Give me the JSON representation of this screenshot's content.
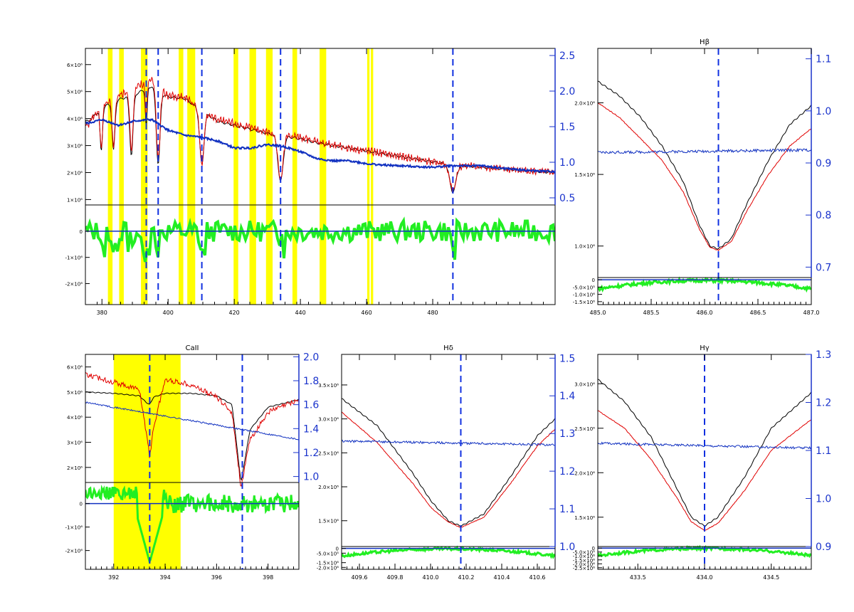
{
  "colors": {
    "observed": "#e00000",
    "model": "#000000",
    "ratio": "#1030c0",
    "residual": "#22ee22",
    "mask": "#ffff00",
    "line_marker": "#1030e0",
    "axis": "#000000",
    "right_axis": "#1a33cc"
  },
  "chart_data": [
    {
      "type": "line",
      "panel": "full-spectrum",
      "title": "",
      "x_ticks": [
        "380",
        "400",
        "420",
        "440",
        "460",
        "480"
      ],
      "xlim": [
        375,
        517
      ],
      "y_ticks": [
        "1×10⁶",
        "2×10⁶",
        "3×10⁶",
        "4×10⁶",
        "5×10⁶",
        "6×10⁶"
      ],
      "ylim": [
        0.8,
        6.6
      ],
      "y2_ticks": [
        "0.5",
        "1.0",
        "1.5",
        "2.0",
        "2.5"
      ],
      "y2lim": [
        0.4,
        2.6
      ],
      "resid_ticks": [
        "0",
        "-1×10⁶",
        "-2×10⁶"
      ],
      "resid_lim": [
        -2.8,
        1.0
      ],
      "mask_bands": [
        [
          381.8,
          383.2
        ],
        [
          385.2,
          386.6
        ],
        [
          391.8,
          393.8
        ],
        [
          403.2,
          404.6
        ],
        [
          405.8,
          408.2
        ],
        [
          419.8,
          421.2
        ],
        [
          424.6,
          426.6
        ],
        [
          429.6,
          431.6
        ],
        [
          437.6,
          439.0
        ],
        [
          445.8,
          447.8
        ],
        [
          460.2,
          460.9
        ],
        [
          461.3,
          462.0
        ]
      ],
      "line_markers": [
        393.4,
        397.0,
        410.2,
        434.0,
        486.1
      ],
      "absorption_lines": [
        [
          379.8,
          0.5,
          1.6
        ],
        [
          383.5,
          0.6,
          1.8
        ],
        [
          388.9,
          0.7,
          2.2
        ],
        [
          393.4,
          0.4,
          1.4
        ],
        [
          397.0,
          0.8,
          2.7
        ],
        [
          410.2,
          0.9,
          2.0
        ],
        [
          434.0,
          1.1,
          1.7
        ],
        [
          486.1,
          1.3,
          1.0
        ]
      ],
      "series": [
        {
          "name": "",
          "role": "model",
          "x": [
            376,
            380,
            385,
            390,
            395,
            400,
            405,
            410,
            415,
            420,
            425,
            430,
            435,
            440,
            445,
            450,
            455,
            460,
            465,
            470,
            475,
            480,
            485,
            490,
            495,
            500,
            505,
            510,
            517
          ],
          "values": [
            3.9,
            4.4,
            4.7,
            4.9,
            5.2,
            4.8,
            4.75,
            4.3,
            3.9,
            3.75,
            3.6,
            3.45,
            3.35,
            3.25,
            3.1,
            3.0,
            2.9,
            2.8,
            2.7,
            2.6,
            2.5,
            2.4,
            2.3,
            2.25,
            2.2,
            2.15,
            2.1,
            2.05,
            2.0
          ]
        },
        {
          "name": "",
          "role": "observed",
          "x": [
            376,
            380,
            385,
            390,
            395,
            400,
            405,
            410,
            415,
            420,
            425,
            430,
            435,
            440,
            445,
            450,
            455,
            460,
            465,
            470,
            475,
            480,
            485,
            490,
            495,
            500,
            505,
            510,
            517
          ],
          "values": [
            3.8,
            4.5,
            4.85,
            5.1,
            5.5,
            4.85,
            4.8,
            4.3,
            3.95,
            3.8,
            3.65,
            3.5,
            3.4,
            3.3,
            3.15,
            3.0,
            2.9,
            2.8,
            2.7,
            2.6,
            2.5,
            2.4,
            2.3,
            2.25,
            2.2,
            2.15,
            2.1,
            2.05,
            2.0
          ]
        },
        {
          "name": "",
          "role": "ratio",
          "axis": "right",
          "x": [
            376,
            380,
            385,
            390,
            395,
            400,
            405,
            410,
            415,
            420,
            425,
            430,
            435,
            440,
            445,
            450,
            455,
            460,
            465,
            470,
            475,
            480,
            485,
            490,
            495,
            500,
            505,
            510,
            517
          ],
          "values": [
            1.55,
            1.6,
            1.52,
            1.58,
            1.6,
            1.45,
            1.38,
            1.35,
            1.3,
            1.2,
            1.2,
            1.25,
            1.22,
            1.15,
            1.05,
            1.02,
            1.02,
            0.98,
            0.96,
            0.95,
            0.94,
            0.93,
            0.95,
            0.95,
            0.95,
            0.92,
            0.9,
            0.88,
            0.87
          ]
        }
      ]
    },
    {
      "type": "line",
      "panel": "H-beta",
      "title": "Hβ",
      "x_ticks": [
        "485.0",
        "485.5",
        "486.0",
        "486.5",
        "487.0"
      ],
      "xlim": [
        485.0,
        487.0
      ],
      "y_ticks": [
        "1.0×10⁶",
        "1.5×10⁶",
        "2.0×10⁶"
      ],
      "ylim": [
        0.78,
        2.38
      ],
      "y2_ticks": [
        "0.7",
        "0.8",
        "0.9",
        "1.0",
        "1.1"
      ],
      "y2lim": [
        0.68,
        1.12
      ],
      "resid_ticks": [
        "0",
        "-5.0×10⁵",
        "-1.0×10⁶",
        "-1.5×10⁶"
      ],
      "resid_lim": [
        -1.7,
        0.15
      ],
      "line_markers": [
        486.13
      ],
      "series": [
        {
          "name": "",
          "role": "model",
          "x": [
            485.0,
            485.2,
            485.4,
            485.6,
            485.8,
            485.95,
            486.05,
            486.13,
            486.25,
            486.4,
            486.6,
            486.8,
            487.0
          ],
          "values": [
            2.15,
            2.05,
            1.9,
            1.7,
            1.45,
            1.15,
            1.0,
            0.98,
            1.05,
            1.3,
            1.6,
            1.85,
            1.98
          ]
        },
        {
          "name": "",
          "role": "observed",
          "x": [
            485.0,
            485.2,
            485.4,
            485.6,
            485.8,
            485.95,
            486.05,
            486.13,
            486.25,
            486.4,
            486.6,
            486.8,
            487.0
          ],
          "values": [
            2.0,
            1.9,
            1.75,
            1.6,
            1.38,
            1.12,
            0.99,
            0.97,
            1.03,
            1.25,
            1.5,
            1.7,
            1.82
          ]
        },
        {
          "name": "",
          "role": "ratio",
          "axis": "right",
          "x": [
            485.0,
            487.0
          ],
          "values": [
            0.92,
            0.925
          ]
        }
      ]
    },
    {
      "type": "line",
      "panel": "CaII",
      "title": "CaII",
      "x_ticks": [
        "392",
        "394",
        "396",
        "398"
      ],
      "xlim": [
        390.9,
        399.2
      ],
      "y_ticks": [
        "2×10⁶",
        "3×10⁶",
        "4×10⁶",
        "5×10⁶",
        "6×10⁶"
      ],
      "ylim": [
        1.4,
        6.5
      ],
      "y2_ticks": [
        "1.0",
        "1.2",
        "1.4",
        "1.6",
        "1.8",
        "2.0"
      ],
      "y2lim": [
        0.95,
        2.02
      ],
      "resid_ticks": [
        "0",
        "-1×10⁶",
        "-2×10⁶"
      ],
      "resid_lim": [
        -2.8,
        0.9
      ],
      "mask_bands": [
        [
          392.0,
          394.6
        ]
      ],
      "line_markers": [
        393.4,
        397.0
      ],
      "series": [
        {
          "name": "",
          "role": "model",
          "x": [
            390.9,
            392.0,
            393.0,
            393.25,
            393.4,
            393.55,
            394.0,
            395.0,
            396.0,
            396.6,
            396.95,
            397.3,
            398.0,
            399.2
          ],
          "values": [
            5.0,
            4.95,
            4.85,
            4.6,
            4.5,
            4.8,
            4.95,
            4.95,
            4.85,
            4.5,
            1.4,
            3.5,
            4.4,
            4.7
          ]
        },
        {
          "name": "",
          "role": "observed",
          "x": [
            390.9,
            392.0,
            393.0,
            393.25,
            393.4,
            393.55,
            394.0,
            395.0,
            396.0,
            396.6,
            396.95,
            397.3,
            398.0,
            399.2
          ],
          "values": [
            5.7,
            5.4,
            5.1,
            3.5,
            2.4,
            3.6,
            5.5,
            5.3,
            4.8,
            4.2,
            1.2,
            3.1,
            4.2,
            4.7
          ]
        },
        {
          "name": "",
          "role": "ratio",
          "axis": "right",
          "x": [
            390.9,
            399.2
          ],
          "values": [
            1.62,
            1.31
          ]
        }
      ]
    },
    {
      "type": "line",
      "panel": "H-delta",
      "title": "Hδ",
      "x_ticks": [
        "409.6",
        "409.8",
        "410.0",
        "410.2",
        "410.4",
        "410.6"
      ],
      "xlim": [
        409.5,
        410.7
      ],
      "y_ticks": [
        "1.5×10⁶",
        "2.0×10⁶",
        "2.5×10⁶",
        "3.0×10⁶",
        "3.5×10⁶"
      ],
      "ylim": [
        1.12,
        3.95
      ],
      "y2_ticks": [
        "1.0",
        "1.1",
        "1.2",
        "1.3",
        "1.4",
        "1.5"
      ],
      "y2lim": [
        1.0,
        1.51
      ],
      "resid_ticks": [
        "0",
        "-5.0×10⁵",
        "-1.5×10⁶",
        "-2.0×10⁶"
      ],
      "resid_lim": [
        -2.2,
        0.2
      ],
      "line_markers": [
        410.17
      ],
      "series": [
        {
          "name": "",
          "role": "model",
          "x": [
            409.5,
            409.7,
            409.9,
            410.0,
            410.1,
            410.17,
            410.3,
            410.45,
            410.6,
            410.7
          ],
          "values": [
            3.3,
            2.9,
            2.2,
            1.8,
            1.5,
            1.42,
            1.6,
            2.15,
            2.75,
            3.0
          ]
        },
        {
          "name": "",
          "role": "observed",
          "x": [
            409.5,
            409.7,
            409.9,
            410.0,
            410.1,
            410.17,
            410.3,
            410.45,
            410.6,
            410.7
          ],
          "values": [
            3.1,
            2.65,
            2.05,
            1.7,
            1.48,
            1.4,
            1.55,
            2.05,
            2.6,
            2.85
          ]
        },
        {
          "name": "",
          "role": "ratio",
          "axis": "right",
          "x": [
            409.5,
            410.7
          ],
          "values": [
            1.28,
            1.27
          ]
        }
      ]
    },
    {
      "type": "line",
      "panel": "H-gamma",
      "title": "Hγ",
      "x_ticks": [
        "433.5",
        "434.0",
        "434.5"
      ],
      "xlim": [
        433.2,
        434.8
      ],
      "y_ticks": [
        "1.5×10⁶",
        "2.0×10⁶",
        "2.5×10⁶",
        "3.0×10⁶"
      ],
      "ylim": [
        1.17,
        3.33
      ],
      "y2_ticks": [
        "0.9",
        "1.0",
        "1.1",
        "1.2",
        "1.3"
      ],
      "y2lim": [
        0.9,
        1.3
      ],
      "resid_ticks": [
        "0",
        "-5.0×10⁵",
        "-1.0×10⁶",
        "-1.5×10⁶",
        "-2.0×10⁶",
        "-2.5×10⁶"
      ],
      "resid_lim": [
        -2.7,
        0.2
      ],
      "line_markers": [
        434.0
      ],
      "series": [
        {
          "name": "",
          "role": "model",
          "x": [
            433.2,
            433.4,
            433.6,
            433.8,
            433.9,
            434.0,
            434.1,
            434.3,
            434.5,
            434.8
          ],
          "values": [
            3.05,
            2.8,
            2.4,
            1.8,
            1.5,
            1.4,
            1.5,
            1.95,
            2.5,
            2.9
          ]
        },
        {
          "name": "",
          "role": "observed",
          "x": [
            433.2,
            433.4,
            433.6,
            433.8,
            433.9,
            434.0,
            434.1,
            434.3,
            434.5,
            434.8
          ],
          "values": [
            2.7,
            2.5,
            2.15,
            1.7,
            1.45,
            1.35,
            1.43,
            1.8,
            2.25,
            2.6
          ]
        },
        {
          "name": "",
          "role": "ratio",
          "axis": "right",
          "x": [
            433.2,
            434.8
          ],
          "values": [
            1.115,
            1.105
          ]
        }
      ]
    }
  ]
}
